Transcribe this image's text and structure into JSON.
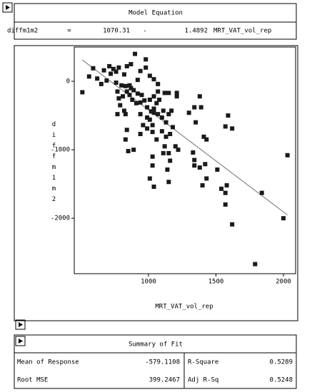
{
  "model_equation": {
    "title": "Model Equation",
    "row": [
      "diffm1m2",
      "=",
      1070.31,
      "-",
      1.4892,
      "MRT_VAT_vol_rep"
    ]
  },
  "chart_data": {
    "type": "scatter",
    "x_label": "MRT_VAT_vol_rep",
    "y_label": "diffm1m2",
    "x": [
      510,
      560,
      590,
      670,
      710,
      720,
      740,
      760,
      780,
      820,
      840,
      870,
      900,
      920,
      940,
      980,
      980,
      1010,
      1040,
      690,
      760,
      770,
      800,
      830,
      840,
      860,
      870,
      890,
      920,
      780,
      810,
      790,
      820,
      770,
      830,
      860,
      880,
      910,
      940,
      950,
      970,
      990,
      1020,
      1040,
      1060,
      1080,
      1120,
      1150,
      1210,
      940,
      960,
      990,
      1010,
      1030,
      1040,
      1070,
      1100,
      1130,
      1150,
      1170,
      1070,
      1040,
      1010,
      1110,
      840,
      830,
      940,
      990,
      1030,
      1060,
      1100,
      1130,
      1160,
      1180,
      1200,
      1220,
      1120,
      1150,
      1160,
      1140,
      1110,
      1030,
      1030,
      1010,
      1040,
      1150,
      890,
      850,
      1300,
      1340,
      1380,
      1390,
      1350,
      1430,
      1410,
      1330,
      1340,
      1340,
      1380,
      1420,
      1430,
      1400,
      1510,
      1570,
      1590,
      1620,
      1540,
      1580,
      1570,
      1570,
      1620,
      1790,
      1840,
      2000,
      2030,
      620,
      650,
      1070,
      1210
    ],
    "values": [
      -160,
      70,
      190,
      160,
      220,
      110,
      180,
      140,
      200,
      100,
      220,
      250,
      400,
      20,
      150,
      320,
      200,
      80,
      30,
      10,
      -20,
      -150,
      -60,
      -70,
      -150,
      -60,
      -100,
      -130,
      -180,
      -250,
      -220,
      -350,
      -430,
      -480,
      -480,
      -200,
      -270,
      -320,
      -310,
      -200,
      -280,
      -380,
      -440,
      -400,
      -320,
      -270,
      -170,
      -170,
      -170,
      -480,
      -640,
      -530,
      -560,
      -640,
      -460,
      -480,
      -530,
      -600,
      -480,
      -430,
      -150,
      -220,
      -270,
      -430,
      -710,
      -850,
      -770,
      -690,
      -740,
      -850,
      -730,
      -810,
      -770,
      -670,
      -950,
      -1000,
      -950,
      -1050,
      -1160,
      -1290,
      -1050,
      -1100,
      -1230,
      -1420,
      -1540,
      -1470,
      -1000,
      -1020,
      -460,
      -380,
      -220,
      -380,
      -600,
      -850,
      -810,
      -1040,
      -1150,
      -1230,
      -1260,
      -1210,
      -1420,
      -1520,
      -1290,
      -660,
      -500,
      -690,
      -1570,
      -1520,
      -1630,
      -1800,
      -2090,
      -2670,
      -1630,
      -2000,
      -1080,
      40,
      -40,
      -40,
      -220
    ],
    "color": "#1a1a1a",
    "fit_line_color": "#707070",
    "xlim": [
      450,
      2090
    ],
    "ylim": [
      -2810,
      500
    ],
    "xticks": [
      1000,
      1500,
      2000
    ],
    "yticks": [
      0,
      -1000,
      -2000
    ],
    "grid": false
  },
  "summary_of_fit": {
    "title": "Summary of Fit",
    "rows": [
      [
        "Mean of Response",
        -579.1108,
        "R-Square",
        0.5289
      ],
      [
        "Root MSE",
        399.2467,
        "Adj R-Sq",
        0.5248
      ]
    ]
  }
}
